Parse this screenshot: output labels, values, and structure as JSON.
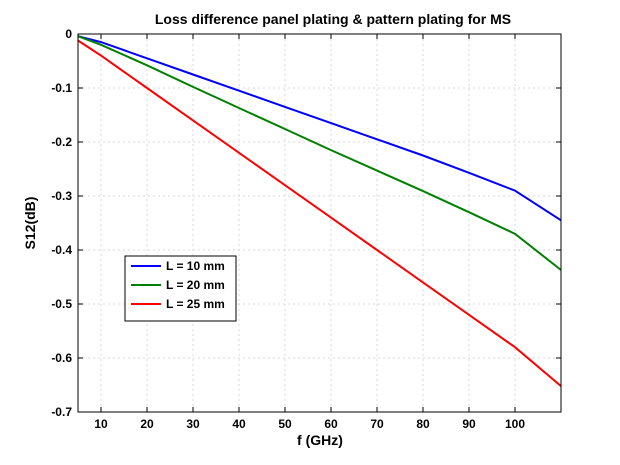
{
  "chart_data": {
    "type": "line",
    "title": "Loss difference panel plating & pattern plating for MS",
    "xlabel": "f (GHz)",
    "ylabel": "S12(dB)",
    "xlim": [
      5,
      110
    ],
    "ylim": [
      -0.7,
      0
    ],
    "xticks": [
      10,
      20,
      30,
      40,
      50,
      60,
      70,
      80,
      90,
      100
    ],
    "yticks": [
      0,
      -0.1,
      -0.2,
      -0.3,
      -0.4,
      -0.5,
      -0.6,
      -0.7
    ],
    "xtick_labels": [
      "10",
      "20",
      "30",
      "40",
      "50",
      "60",
      "70",
      "80",
      "90",
      "100"
    ],
    "ytick_labels": [
      "0",
      "-0.1",
      "-0.2",
      "-0.3",
      "-0.4",
      "-0.5",
      "-0.6",
      "-0.7"
    ],
    "grid": true,
    "legend_position": "lower-left",
    "x": [
      5,
      10,
      20,
      30,
      40,
      50,
      60,
      70,
      80,
      90,
      100,
      110
    ],
    "series": [
      {
        "name": "L = 10 mm",
        "color": "#0000ff",
        "values": [
          -0.004,
          -0.015,
          -0.045,
          -0.075,
          -0.105,
          -0.135,
          -0.165,
          -0.195,
          -0.225,
          -0.257,
          -0.29,
          -0.345
        ]
      },
      {
        "name": "L = 20 mm",
        "color": "#008000",
        "values": [
          -0.004,
          -0.02,
          -0.058,
          -0.098,
          -0.137,
          -0.176,
          -0.215,
          -0.253,
          -0.291,
          -0.33,
          -0.37,
          -0.437
        ]
      },
      {
        "name": "L = 25 mm",
        "color": "#ff0000",
        "values": [
          -0.012,
          -0.04,
          -0.1,
          -0.16,
          -0.22,
          -0.28,
          -0.34,
          -0.4,
          -0.46,
          -0.52,
          -0.58,
          -0.652
        ]
      }
    ]
  }
}
